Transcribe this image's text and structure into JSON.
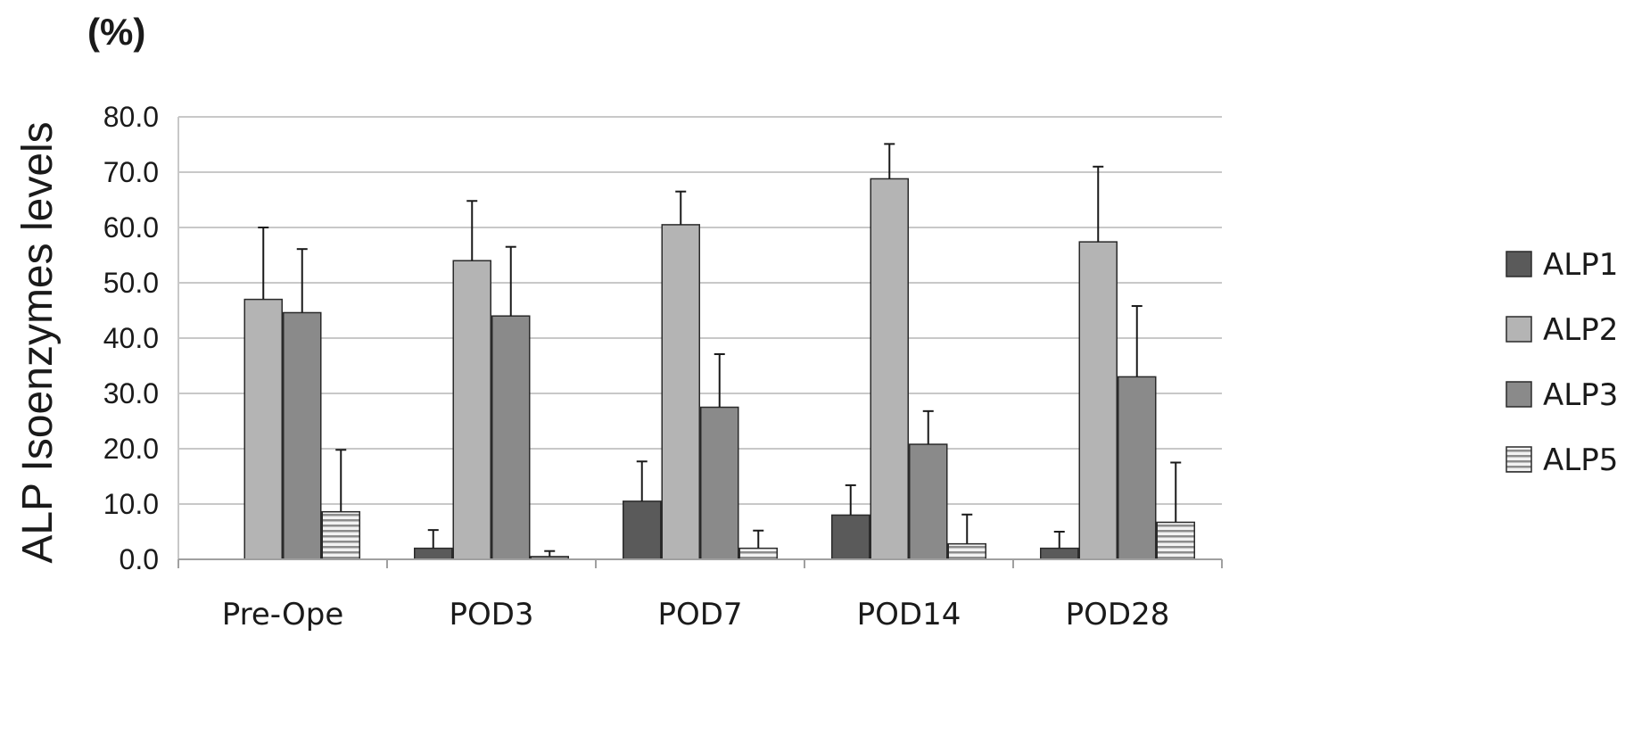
{
  "chart_data": {
    "type": "bar",
    "unit_label": "(%)",
    "ylabel": "ALP Isoenzymes levels",
    "xlabel": "",
    "title": "",
    "ylim": [
      0,
      80
    ],
    "yticks": [
      "0.0",
      "10.0",
      "20.0",
      "30.0",
      "40.0",
      "50.0",
      "60.0",
      "70.0",
      "80.0"
    ],
    "grid": true,
    "legend_position": "right",
    "categories": [
      "Pre-Ope",
      "POD3",
      "POD7",
      "POD14",
      "POD28"
    ],
    "series": [
      {
        "name": "ALP1",
        "color": "#5a5a5a",
        "pattern": "solid",
        "values": [
          0.0,
          2.0,
          10.5,
          8.0,
          2.0
        ],
        "errors": [
          0.0,
          3.3,
          7.2,
          5.4,
          3.0
        ]
      },
      {
        "name": "ALP2",
        "color": "#b4b4b4",
        "pattern": "solid",
        "values": [
          47.0,
          54.0,
          60.5,
          68.8,
          57.4
        ],
        "errors": [
          13.0,
          10.8,
          6.0,
          6.3,
          13.6
        ]
      },
      {
        "name": "ALP3",
        "color": "#8a8a8a",
        "pattern": "solid",
        "values": [
          44.6,
          44.0,
          27.5,
          20.8,
          33.0
        ],
        "errors": [
          11.5,
          12.5,
          9.6,
          6.0,
          12.8
        ]
      },
      {
        "name": "ALP5",
        "color": "#e6e6e6",
        "pattern": "horizontal-stripes",
        "values": [
          8.6,
          0.5,
          2.0,
          2.8,
          6.7
        ],
        "errors": [
          11.2,
          1.0,
          3.2,
          5.3,
          10.8
        ]
      }
    ]
  }
}
